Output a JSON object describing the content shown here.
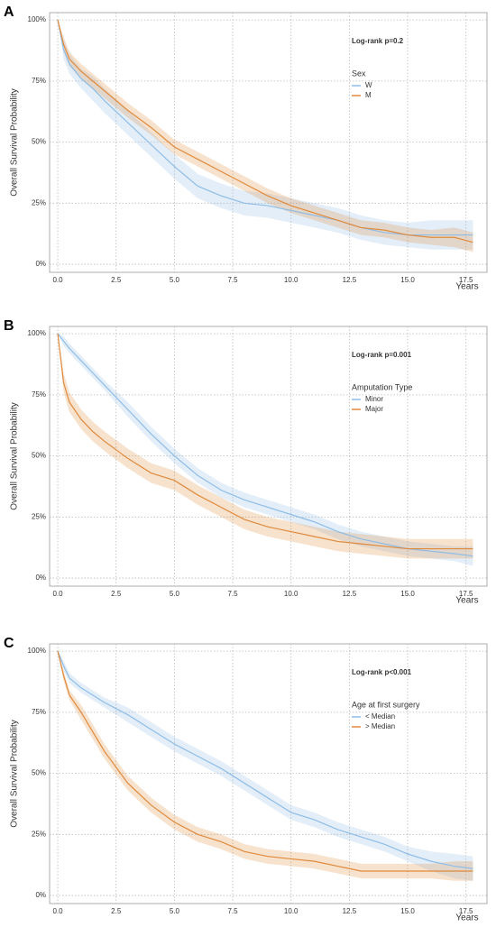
{
  "chart_data": [
    {
      "type": "line",
      "panel": "A",
      "annotation": "Log-rank p=0.2",
      "legend_title": "Sex",
      "ylabel": "Overall Survival Probability",
      "xlabel": "Years",
      "x": [
        0,
        0.25,
        0.5,
        1,
        1.5,
        2,
        3,
        4,
        5,
        6,
        7,
        8,
        9,
        10,
        11,
        12,
        13,
        14,
        15,
        16,
        17,
        17.8
      ],
      "series": [
        {
          "name": "W",
          "color": "#8fbde6",
          "values": [
            100,
            88,
            82,
            76,
            72,
            67,
            58,
            49,
            40,
            32,
            28,
            25,
            24,
            22,
            20,
            18,
            15,
            13,
            12,
            12,
            12,
            12
          ],
          "lower": [
            100,
            84,
            78,
            72,
            67,
            62,
            53,
            44,
            35,
            27,
            23,
            20,
            19,
            17,
            15,
            13,
            10,
            8,
            7,
            6,
            6,
            6
          ],
          "upper": [
            100,
            92,
            86,
            80,
            77,
            72,
            63,
            54,
            45,
            37,
            33,
            30,
            29,
            27,
            25,
            23,
            20,
            18,
            17,
            18,
            18,
            18
          ]
        },
        {
          "name": "M",
          "color": "#e08a3c",
          "values": [
            100,
            90,
            84,
            79,
            75,
            71,
            63,
            56,
            48,
            43,
            38,
            33,
            28,
            24,
            21,
            18,
            15,
            14,
            12,
            11,
            11,
            9
          ],
          "lower": [
            100,
            87,
            81,
            76,
            72,
            68,
            60,
            53,
            45,
            40,
            35,
            30,
            25,
            21,
            18,
            15,
            12,
            11,
            9,
            8,
            7,
            5
          ],
          "upper": [
            100,
            93,
            87,
            82,
            78,
            74,
            66,
            59,
            51,
            46,
            41,
            36,
            31,
            27,
            24,
            21,
            18,
            17,
            15,
            14,
            15,
            13
          ]
        }
      ],
      "xlim": [
        -0.35,
        18.4
      ],
      "ylim": [
        -3.3,
        103
      ],
      "xticks": [
        {
          "value": 0,
          "label": "0.0"
        },
        2.5,
        {
          "value": 5,
          "label": "5.0"
        },
        7.5,
        {
          "value": 10,
          "label": "10.0"
        },
        12.5,
        {
          "value": 15,
          "label": "15.0"
        },
        17.5
      ],
      "yticks": [
        {
          "value": 0,
          "label": "0%"
        },
        {
          "value": 25,
          "label": "25%"
        },
        {
          "value": 50,
          "label": "50%"
        },
        {
          "value": 75,
          "label": "75%"
        },
        {
          "value": 100,
          "label": "100%"
        }
      ],
      "grid": true
    },
    {
      "type": "line",
      "panel": "B",
      "annotation": "Log-rank p=0.001",
      "legend_title": "Amputation Type",
      "ylabel": "Overall Survival Probability",
      "xlabel": "Years",
      "x": [
        0,
        0.25,
        0.5,
        1,
        1.5,
        2,
        3,
        4,
        5,
        6,
        7,
        8,
        9,
        10,
        11,
        12,
        13,
        14,
        15,
        16,
        17,
        17.8
      ],
      "series": [
        {
          "name": "Minor",
          "color": "#8fbde6",
          "values": [
            100,
            97,
            94,
            89,
            84,
            79,
            69,
            59,
            50,
            42,
            36,
            32,
            29,
            26,
            23,
            19,
            16,
            14,
            12,
            11,
            10,
            9
          ],
          "lower": [
            100,
            95,
            92,
            87,
            82,
            77,
            66,
            56,
            47,
            39,
            33,
            29,
            26,
            23,
            20,
            16,
            13,
            11,
            9,
            8,
            7,
            5
          ],
          "upper": [
            100,
            99,
            96,
            91,
            86,
            81,
            72,
            62,
            53,
            45,
            39,
            35,
            32,
            29,
            26,
            22,
            19,
            17,
            15,
            14,
            13,
            13
          ]
        },
        {
          "name": "Major",
          "color": "#e08a3c",
          "values": [
            100,
            80,
            72,
            65,
            60,
            56,
            49,
            43,
            40,
            34,
            29,
            24,
            21,
            19,
            17,
            15,
            14,
            13,
            12,
            12,
            12,
            12
          ],
          "lower": [
            100,
            76,
            68,
            61,
            56,
            52,
            45,
            39,
            36,
            30,
            25,
            20,
            17,
            15,
            13,
            11,
            10,
            9,
            8,
            8,
            8,
            8
          ],
          "upper": [
            100,
            84,
            76,
            69,
            64,
            60,
            53,
            47,
            44,
            38,
            33,
            28,
            25,
            23,
            21,
            19,
            18,
            17,
            16,
            16,
            16,
            16
          ]
        }
      ],
      "xlim": [
        -0.35,
        18.4
      ],
      "ylim": [
        -3.3,
        103
      ],
      "xticks": [
        {
          "value": 0,
          "label": "0.0"
        },
        2.5,
        {
          "value": 5,
          "label": "5.0"
        },
        7.5,
        {
          "value": 10,
          "label": "10.0"
        },
        12.5,
        {
          "value": 15,
          "label": "15.0"
        },
        17.5
      ],
      "yticks": [
        {
          "value": 0,
          "label": "0%"
        },
        {
          "value": 25,
          "label": "25%"
        },
        {
          "value": 50,
          "label": "50%"
        },
        {
          "value": 75,
          "label": "75%"
        },
        {
          "value": 100,
          "label": "100%"
        }
      ],
      "grid": true
    },
    {
      "type": "line",
      "panel": "C",
      "annotation": "Log-rank p<0.001",
      "legend_title": "Age at first surgery",
      "ylabel": "Overall Survival Probability",
      "xlabel": "Years",
      "x": [
        0,
        0.25,
        0.5,
        1,
        1.5,
        2,
        3,
        4,
        5,
        6,
        7,
        8,
        9,
        10,
        11,
        12,
        13,
        14,
        15,
        16,
        17,
        17.8
      ],
      "series": [
        {
          "name": "< Median",
          "color": "#8fbde6",
          "values": [
            100,
            94,
            89,
            85,
            82,
            79,
            74,
            68,
            62,
            57,
            52,
            46,
            40,
            34,
            31,
            27,
            24,
            21,
            17,
            14,
            12,
            11
          ],
          "lower": [
            100,
            92,
            87,
            83,
            80,
            77,
            71,
            65,
            59,
            54,
            49,
            43,
            37,
            31,
            28,
            24,
            21,
            18,
            14,
            10,
            7,
            6
          ],
          "upper": [
            100,
            96,
            91,
            87,
            84,
            81,
            77,
            71,
            65,
            60,
            55,
            49,
            43,
            37,
            34,
            30,
            27,
            24,
            20,
            18,
            17,
            16
          ]
        },
        {
          "name": "> Median",
          "color": "#e08a3c",
          "values": [
            100,
            90,
            82,
            75,
            67,
            59,
            46,
            37,
            30,
            25,
            22,
            18,
            16,
            15,
            14,
            12,
            10,
            10,
            10,
            10,
            10,
            10
          ],
          "lower": [
            100,
            88,
            80,
            72,
            64,
            56,
            43,
            34,
            27,
            22,
            19,
            15,
            13,
            12,
            11,
            9,
            7,
            7,
            7,
            7,
            6,
            6
          ],
          "upper": [
            100,
            92,
            84,
            78,
            70,
            62,
            49,
            40,
            33,
            28,
            25,
            21,
            19,
            18,
            17,
            15,
            13,
            13,
            13,
            13,
            14,
            14
          ]
        }
      ],
      "xlim": [
        -0.35,
        18.4
      ],
      "ylim": [
        -3.3,
        103
      ],
      "xticks": [
        {
          "value": 0,
          "label": "0.0"
        },
        2.5,
        {
          "value": 5,
          "label": "5.0"
        },
        7.5,
        {
          "value": 10,
          "label": "10.0"
        },
        12.5,
        {
          "value": 15,
          "label": "15.0"
        },
        17.5
      ],
      "yticks": [
        {
          "value": 0,
          "label": "0%"
        },
        {
          "value": 25,
          "label": "25%"
        },
        {
          "value": 50,
          "label": "50%"
        },
        {
          "value": 75,
          "label": "75%"
        },
        {
          "value": 100,
          "label": "100%"
        }
      ],
      "grid": true
    }
  ]
}
